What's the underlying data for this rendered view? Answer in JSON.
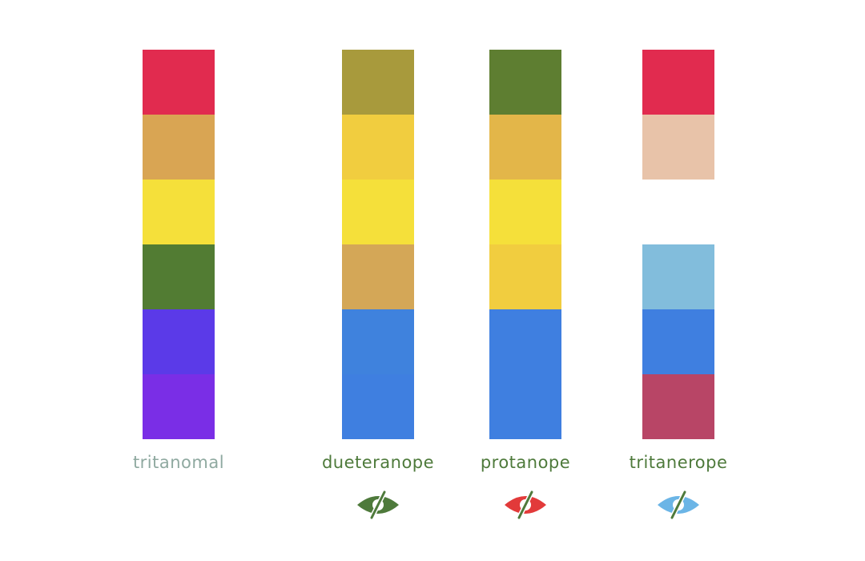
{
  "columns": [
    {
      "id": "tritanomal",
      "label": "tritanomal",
      "label_color": "#8fa9a0",
      "swatches": [
        "#e12b4f",
        "#d9a553",
        "#f5e03a",
        "#527c33",
        "#5b3ae8",
        "#7a2ee6"
      ],
      "eye_icon": null
    },
    {
      "id": "dueteranope",
      "label": "dueteranope",
      "label_color": "#4e7a3b",
      "swatches": [
        "#a89a3c",
        "#f1cd3f",
        "#f5e03a",
        "#d4a757",
        "#3f82dd",
        "#3f7fe0"
      ],
      "eye_icon": {
        "name": "eye-slash-icon",
        "color": "#4e7a3b"
      }
    },
    {
      "id": "protanope",
      "label": "protanope",
      "label_color": "#4e7a3b",
      "swatches": [
        "#5e7e31",
        "#e3b649",
        "#f5e03a",
        "#f1cd3f",
        "#3f7fe0",
        "#3f7fe0"
      ],
      "eye_icon": {
        "name": "eye-slash-icon",
        "color": "#e23a3a"
      }
    },
    {
      "id": "tritanerope",
      "label": "tritanerope",
      "label_color": "#4e7a3b",
      "swatches": [
        "#e12b4f",
        "#e8c3a9",
        "#ffffff",
        "#82bddc",
        "#3f7fe0",
        "#b84566"
      ],
      "eye_icon": {
        "name": "eye-slash-icon",
        "color": "#6bb5e6"
      }
    }
  ]
}
